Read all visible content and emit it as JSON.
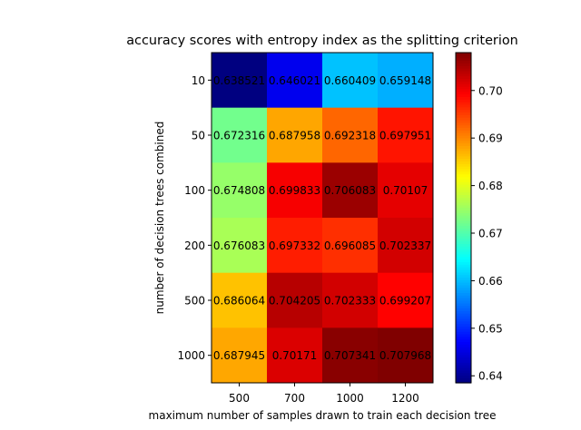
{
  "chart_data": {
    "type": "heatmap",
    "title": "accuracy scores with entropy index as the splitting criterion",
    "xlabel": "maximum number of samples drawn to train each decision tree",
    "ylabel": "number of decision trees combined",
    "x_categories": [
      "500",
      "700",
      "1000",
      "1200"
    ],
    "y_categories": [
      "10",
      "50",
      "100",
      "200",
      "500",
      "1000"
    ],
    "values": [
      [
        0.638521,
        0.646021,
        0.660409,
        0.659148
      ],
      [
        0.672316,
        0.687958,
        0.692318,
        0.697951
      ],
      [
        0.674808,
        0.699833,
        0.706083,
        0.70107
      ],
      [
        0.676083,
        0.697332,
        0.696085,
        0.702337
      ],
      [
        0.686064,
        0.704205,
        0.702333,
        0.699207
      ],
      [
        0.687945,
        0.70171,
        0.707341,
        0.707968
      ]
    ],
    "cell_labels": [
      [
        "0.638521",
        "0.646021",
        "0.660409",
        "0.659148"
      ],
      [
        "0.672316",
        "0.687958",
        "0.692318",
        "0.697951"
      ],
      [
        "0.674808",
        "0.699833",
        "0.706083",
        "0.70107"
      ],
      [
        "0.676083",
        "0.697332",
        "0.696085",
        "0.702337"
      ],
      [
        "0.686064",
        "0.704205",
        "0.702333",
        "0.699207"
      ],
      [
        "0.687945",
        "0.70171",
        "0.707341",
        "0.707968"
      ]
    ],
    "colormap": "jet",
    "color_range": [
      0.638521,
      0.707968
    ],
    "colorbar_ticks": [
      0.64,
      0.65,
      0.66,
      0.67,
      0.68,
      0.69,
      0.7
    ],
    "colorbar_tick_labels": [
      "0.64",
      "0.65",
      "0.66",
      "0.67",
      "0.68",
      "0.69",
      "0.70"
    ]
  }
}
